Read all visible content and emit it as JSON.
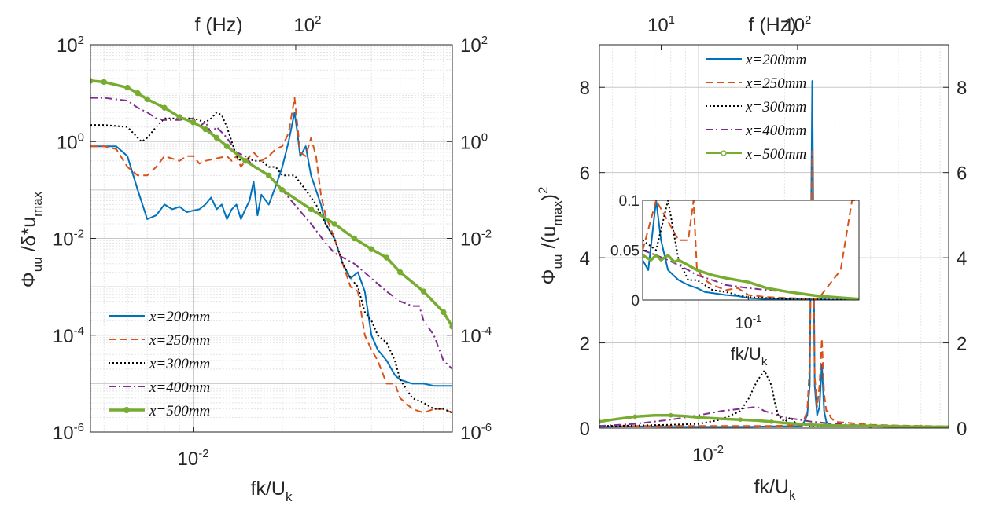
{
  "chart_data": [
    {
      "type": "line",
      "panel": "left",
      "xscale": "log",
      "yscale": "log",
      "xlim": [
        0.0045,
        0.075
      ],
      "ylim": [
        1e-06,
        100
      ],
      "xlabel": "fk/U",
      "xlabel_sub": "k",
      "top_xlabel": "f (Hz)",
      "ylabel_parts": [
        "Φ",
        "uu",
        " /δ*u",
        "max"
      ],
      "x_ticks": [
        {
          "value": 0.01,
          "base": "10",
          "exp": "-2"
        }
      ],
      "top_ticks": [
        {
          "pos": 0.0222,
          "base": "10",
          "exp": "2"
        }
      ],
      "y_ticks": [
        {
          "value": 1e-06,
          "base": "10",
          "exp": "-6"
        },
        {
          "value": 0.0001,
          "base": "10",
          "exp": "-4"
        },
        {
          "value": 0.01,
          "base": "10",
          "exp": "-2"
        },
        {
          "value": 1,
          "base": "10",
          "exp": "0"
        },
        {
          "value": 100,
          "base": "10",
          "exp": "2"
        }
      ],
      "grid": true,
      "legend_position": "bottom-left",
      "series": [
        {
          "name": "x=200mm",
          "color": "#0072bd",
          "style": "solid",
          "x": [
            0.0045,
            0.0055,
            0.006,
            0.0065,
            0.007,
            0.0075,
            0.008,
            0.0085,
            0.009,
            0.0095,
            0.0105,
            0.011,
            0.0115,
            0.012,
            0.0125,
            0.013,
            0.0135,
            0.014,
            0.0145,
            0.015,
            0.0155,
            0.016,
            0.0165,
            0.017,
            0.018,
            0.019,
            0.02,
            0.021,
            0.022,
            0.0225,
            0.023,
            0.024,
            0.025,
            0.027,
            0.028,
            0.03,
            0.032,
            0.034,
            0.036,
            0.038,
            0.04,
            0.042,
            0.045,
            0.048,
            0.05,
            0.055,
            0.06,
            0.065,
            0.07,
            0.075
          ],
          "y": [
            0.8,
            0.8,
            0.5,
            0.1,
            0.025,
            0.03,
            0.05,
            0.04,
            0.045,
            0.035,
            0.04,
            0.05,
            0.07,
            0.04,
            0.05,
            0.025,
            0.04,
            0.05,
            0.025,
            0.04,
            0.06,
            0.15,
            0.03,
            0.08,
            0.05,
            0.12,
            0.3,
            1,
            4,
            1.5,
            0.5,
            0.8,
            0.2,
            0.05,
            0.02,
            0.01,
            0.003,
            0.0015,
            0.002,
            0.0008,
            0.0001,
            5e-05,
            3e-05,
            1.5e-05,
            1.2e-05,
            1e-05,
            1e-05,
            9e-06,
            9e-06,
            9e-06
          ]
        },
        {
          "name": "x=250mm",
          "color": "#d95319",
          "style": "dashed",
          "x": [
            0.0045,
            0.005,
            0.0055,
            0.006,
            0.0065,
            0.007,
            0.0075,
            0.008,
            0.009,
            0.0095,
            0.01,
            0.0105,
            0.011,
            0.012,
            0.013,
            0.0135,
            0.014,
            0.0145,
            0.015,
            0.016,
            0.017,
            0.018,
            0.019,
            0.02,
            0.021,
            0.022,
            0.023,
            0.024,
            0.025,
            0.026,
            0.027,
            0.028,
            0.03,
            0.032,
            0.034,
            0.036,
            0.038,
            0.04,
            0.042,
            0.045,
            0.048,
            0.05,
            0.055,
            0.06,
            0.065,
            0.07,
            0.075
          ],
          "y": [
            0.8,
            0.8,
            0.7,
            0.3,
            0.2,
            0.2,
            0.3,
            0.5,
            0.4,
            0.5,
            0.5,
            0.35,
            0.4,
            0.45,
            0.5,
            0.4,
            0.5,
            0.3,
            0.4,
            0.6,
            0.4,
            0.5,
            0.7,
            0.8,
            1.5,
            8,
            0.6,
            0.5,
            1.2,
            0.5,
            0.08,
            0.03,
            0.01,
            0.003,
            0.001,
            0.0008,
            0.0001,
            5e-05,
            3e-05,
            1e-05,
            1e-05,
            5e-06,
            3e-06,
            2.5e-06,
            3e-06,
            3e-06,
            2.5e-06
          ]
        },
        {
          "name": "x=300mm",
          "color": "#000000",
          "style": "dotted",
          "x": [
            0.0045,
            0.005,
            0.006,
            0.0065,
            0.0067,
            0.007,
            0.0075,
            0.008,
            0.009,
            0.01,
            0.011,
            0.0115,
            0.012,
            0.0125,
            0.013,
            0.0135,
            0.014,
            0.0145,
            0.015,
            0.016,
            0.017,
            0.018,
            0.019,
            0.02,
            0.022,
            0.024,
            0.026,
            0.028,
            0.03,
            0.032,
            0.034,
            0.036,
            0.038,
            0.04,
            0.042,
            0.045,
            0.048,
            0.05,
            0.055,
            0.06,
            0.065,
            0.07,
            0.075
          ],
          "y": [
            2.2,
            2.2,
            2,
            1.2,
            1,
            1.2,
            2,
            3,
            3,
            3,
            2.5,
            3,
            4,
            3.5,
            2,
            1,
            0.5,
            0.4,
            0.5,
            0.4,
            0.4,
            0.3,
            0.3,
            0.2,
            0.2,
            0.1,
            0.05,
            0.02,
            0.01,
            0.003,
            0.0015,
            0.001,
            0.0003,
            0.0002,
            0.0001,
            7e-05,
            3e-05,
            1.2e-05,
            5e-06,
            4e-06,
            3e-06,
            3e-06,
            2.5e-06
          ]
        },
        {
          "name": "x=400mm",
          "color": "#7e2f8e",
          "style": "dashdot",
          "x": [
            0.0045,
            0.005,
            0.006,
            0.0065,
            0.007,
            0.0075,
            0.008,
            0.009,
            0.01,
            0.0105,
            0.011,
            0.0115,
            0.012,
            0.013,
            0.014,
            0.015,
            0.016,
            0.018,
            0.02,
            0.022,
            0.025,
            0.028,
            0.03,
            0.035,
            0.04,
            0.045,
            0.05,
            0.055,
            0.058,
            0.06,
            0.065,
            0.07,
            0.075
          ],
          "y": [
            8,
            8,
            7,
            5,
            4,
            3,
            2.8,
            2.8,
            3,
            2,
            2.6,
            1.5,
            2,
            1.2,
            0.6,
            0.5,
            0.3,
            0.2,
            0.1,
            0.05,
            0.02,
            0.008,
            0.005,
            0.003,
            0.0015,
            0.0008,
            0.0005,
            0.0004,
            0.0004,
            0.0002,
            0.0001,
            3e-05,
            2e-05
          ]
        },
        {
          "name": "x=500mm",
          "color": "#77ac30",
          "style": "solid-marker",
          "x": [
            0.0045,
            0.005,
            0.006,
            0.0065,
            0.007,
            0.008,
            0.009,
            0.01,
            0.011,
            0.012,
            0.013,
            0.015,
            0.018,
            0.02,
            0.025,
            0.03,
            0.035,
            0.04,
            0.045,
            0.05,
            0.06,
            0.07,
            0.075
          ],
          "y": [
            18,
            17,
            13,
            10,
            7.5,
            5,
            3.2,
            2.5,
            1.8,
            1.2,
            0.8,
            0.4,
            0.2,
            0.1,
            0.04,
            0.02,
            0.01,
            0.006,
            0.004,
            0.002,
            0.0008,
            0.0003,
            0.00015
          ]
        }
      ]
    },
    {
      "type": "line",
      "panel": "right",
      "xscale": "log",
      "yscale": "linear",
      "xlim": [
        0.0045,
        0.075
      ],
      "ylim": [
        0,
        9
      ],
      "xlabel": "fk/U",
      "xlabel_sub": "k",
      "top_xlabel": "f (Hz)",
      "ylabel_parts": [
        "Φ",
        "uu",
        " /(u",
        "max",
        ")",
        "2"
      ],
      "x_ticks": [
        {
          "value": 0.01,
          "base": "10",
          "exp": "-2"
        }
      ],
      "top_ticks": [
        {
          "pos": 0.0074,
          "base": "10",
          "exp": "1"
        },
        {
          "pos": 0.0222,
          "base": "10",
          "exp": "2"
        }
      ],
      "y_ticks": [
        0,
        2,
        4,
        6,
        8
      ],
      "grid": true,
      "legend_position": "top-center",
      "series": [
        {
          "name": "x=200mm",
          "color": "#0072bd",
          "style": "solid",
          "x": [
            0.0045,
            0.006,
            0.008,
            0.01,
            0.015,
            0.018,
            0.02,
            0.023,
            0.024,
            0.0245,
            0.025,
            0.0255,
            0.026,
            0.0265,
            0.027,
            0.0275,
            0.028,
            0.0285,
            0.029,
            0.03,
            0.04,
            0.05,
            0.075
          ],
          "y": [
            0.03,
            0.04,
            0.03,
            0.03,
            0.03,
            0.04,
            0.04,
            0.05,
            0.3,
            1,
            8.15,
            1,
            0.3,
            0.5,
            1.5,
            0.4,
            0.15,
            0.1,
            0.08,
            0.06,
            0.04,
            0.03,
            0.02
          ]
        },
        {
          "name": "x=250mm",
          "color": "#d95319",
          "style": "dashed",
          "x": [
            0.0045,
            0.006,
            0.008,
            0.01,
            0.015,
            0.018,
            0.02,
            0.023,
            0.024,
            0.0245,
            0.025,
            0.0255,
            0.026,
            0.0265,
            0.027,
            0.0275,
            0.028,
            0.0285,
            0.029,
            0.03,
            0.04,
            0.05,
            0.075
          ],
          "y": [
            0.04,
            0.05,
            0.05,
            0.05,
            0.05,
            0.05,
            0.06,
            0.07,
            0.4,
            1.5,
            6.5,
            1.2,
            0.5,
            1,
            2.1,
            0.8,
            0.4,
            0.4,
            0.25,
            0.15,
            0.08,
            0.06,
            0.04
          ]
        },
        {
          "name": "x=300mm",
          "color": "#000000",
          "style": "dotted",
          "x": [
            0.0045,
            0.006,
            0.008,
            0.01,
            0.012,
            0.014,
            0.015,
            0.016,
            0.017,
            0.018,
            0.0185,
            0.019,
            0.02,
            0.021,
            0.022,
            0.025,
            0.03,
            0.04,
            0.05,
            0.075
          ],
          "y": [
            0.05,
            0.06,
            0.08,
            0.1,
            0.2,
            0.4,
            0.7,
            1.1,
            1.35,
            1,
            0.6,
            0.3,
            0.15,
            0.25,
            0.1,
            0.05,
            0.05,
            0.04,
            0.03,
            0.02
          ]
        },
        {
          "name": "x=400mm",
          "color": "#7e2f8e",
          "style": "dashdot",
          "x": [
            0.0045,
            0.006,
            0.008,
            0.01,
            0.012,
            0.014,
            0.016,
            0.017,
            0.018,
            0.02,
            0.025,
            0.03,
            0.04,
            0.05,
            0.075
          ],
          "y": [
            0.05,
            0.1,
            0.2,
            0.3,
            0.4,
            0.45,
            0.5,
            0.4,
            0.35,
            0.25,
            0.15,
            0.1,
            0.05,
            0.04,
            0.03
          ]
        },
        {
          "name": "x=500mm",
          "color": "#77ac30",
          "style": "solid-marker",
          "x": [
            0.0045,
            0.005,
            0.006,
            0.007,
            0.008,
            0.009,
            0.01,
            0.012,
            0.014,
            0.016,
            0.018,
            0.02,
            0.025,
            0.03,
            0.04,
            0.05,
            0.06,
            0.075
          ],
          "y": [
            0.15,
            0.2,
            0.27,
            0.3,
            0.3,
            0.28,
            0.25,
            0.22,
            0.2,
            0.18,
            0.15,
            0.12,
            0.08,
            0.06,
            0.05,
            0.04,
            0.03,
            0.03
          ]
        }
      ],
      "inset": {
        "xscale": "log",
        "xlim": [
          0.035,
          0.3
        ],
        "ylim": [
          0,
          0.1
        ],
        "xlabel": "fk/U",
        "xlabel_sub": "k",
        "x_ticks": [
          {
            "value": 0.1,
            "base": "10",
            "exp": "-1"
          }
        ],
        "y_ticks": [
          {
            "value": 0,
            "label": "0"
          },
          {
            "value": 0.05,
            "label": "0.05"
          },
          {
            "value": 0.1,
            "label": "0.1"
          }
        ],
        "series": [
          {
            "name": "x=200mm",
            "color": "#0072bd",
            "style": "solid",
            "x": [
              0.035,
              0.037,
              0.04,
              0.042,
              0.045,
              0.05,
              0.055,
              0.06,
              0.065,
              0.07,
              0.08,
              0.09,
              0.1,
              0.12,
              0.15,
              0.3
            ],
            "y": [
              0.04,
              0.03,
              0.1,
              0.06,
              0.03,
              0.02,
              0.015,
              0.012,
              0.008,
              0.007,
              0.005,
              0.004,
              0.002,
              0.001,
              0.001,
              0
            ]
          },
          {
            "name": "x=250mm",
            "color": "#d95319",
            "style": "dashed",
            "x": [
              0.035,
              0.04,
              0.05,
              0.055,
              0.058,
              0.06,
              0.065,
              0.07,
              0.08,
              0.09,
              0.1,
              0.12,
              0.15,
              0.2,
              0.25,
              0.28,
              0.3
            ],
            "y": [
              0.05,
              0.1,
              0.06,
              0.06,
              0.1,
              0.03,
              0.02,
              0.015,
              0.01,
              0.012,
              0.005,
              0.003,
              0.002,
              0.001,
              0.03,
              0.1,
              0.1
            ]
          },
          {
            "name": "x=300mm",
            "color": "#000000",
            "style": "dotted",
            "x": [
              0.035,
              0.04,
              0.045,
              0.05,
              0.055,
              0.06,
              0.07,
              0.08,
              0.09,
              0.1,
              0.12,
              0.15,
              0.3
            ],
            "y": [
              0.06,
              0.05,
              0.1,
              0.04,
              0.02,
              0.02,
              0.01,
              0.008,
              0.005,
              0.003,
              0.002,
              0.001,
              0
            ]
          },
          {
            "name": "x=400mm",
            "color": "#7e2f8e",
            "style": "dashdot",
            "x": [
              0.035,
              0.04,
              0.045,
              0.05,
              0.055,
              0.06,
              0.07,
              0.08,
              0.1,
              0.12,
              0.15,
              0.2,
              0.3
            ],
            "y": [
              0.05,
              0.045,
              0.04,
              0.035,
              0.03,
              0.025,
              0.02,
              0.015,
              0.012,
              0.01,
              0.008,
              0.004,
              0.001
            ]
          },
          {
            "name": "x=500mm",
            "color": "#77ac30",
            "style": "solid-marker",
            "x": [
              0.035,
              0.038,
              0.04,
              0.042,
              0.045,
              0.048,
              0.05,
              0.055,
              0.06,
              0.07,
              0.08,
              0.1,
              0.12,
              0.15,
              0.2,
              0.3
            ],
            "y": [
              0.045,
              0.04,
              0.045,
              0.04,
              0.045,
              0.038,
              0.04,
              0.035,
              0.03,
              0.025,
              0.022,
              0.018,
              0.012,
              0.008,
              0.004,
              0.001
            ]
          }
        ]
      }
    }
  ]
}
